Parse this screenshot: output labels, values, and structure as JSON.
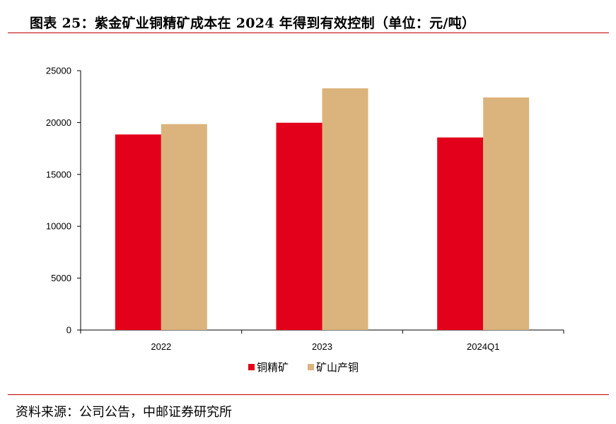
{
  "title": "图表 25：紫金矿业铜精矿成本在 2024 年得到有效控制（单位：元/吨）",
  "source": "资料来源：公司公告，中邮证券研究所",
  "colors": {
    "rule": "#c00000"
  },
  "chart_data": {
    "type": "bar",
    "categories": [
      "2022",
      "2023",
      "2024Q1"
    ],
    "series": [
      {
        "name": "铜精矿",
        "color": "#e3001a",
        "values": [
          18850,
          19980,
          18560
        ]
      },
      {
        "name": "矿山产铜",
        "color": "#dbb37c",
        "values": [
          19850,
          23300,
          22420
        ]
      }
    ],
    "ylim": [
      0,
      25000
    ],
    "yticks": [
      "0",
      "5000",
      "10000",
      "15000",
      "20000",
      "25000"
    ],
    "grid": false,
    "legend_position": "bottom-center"
  }
}
